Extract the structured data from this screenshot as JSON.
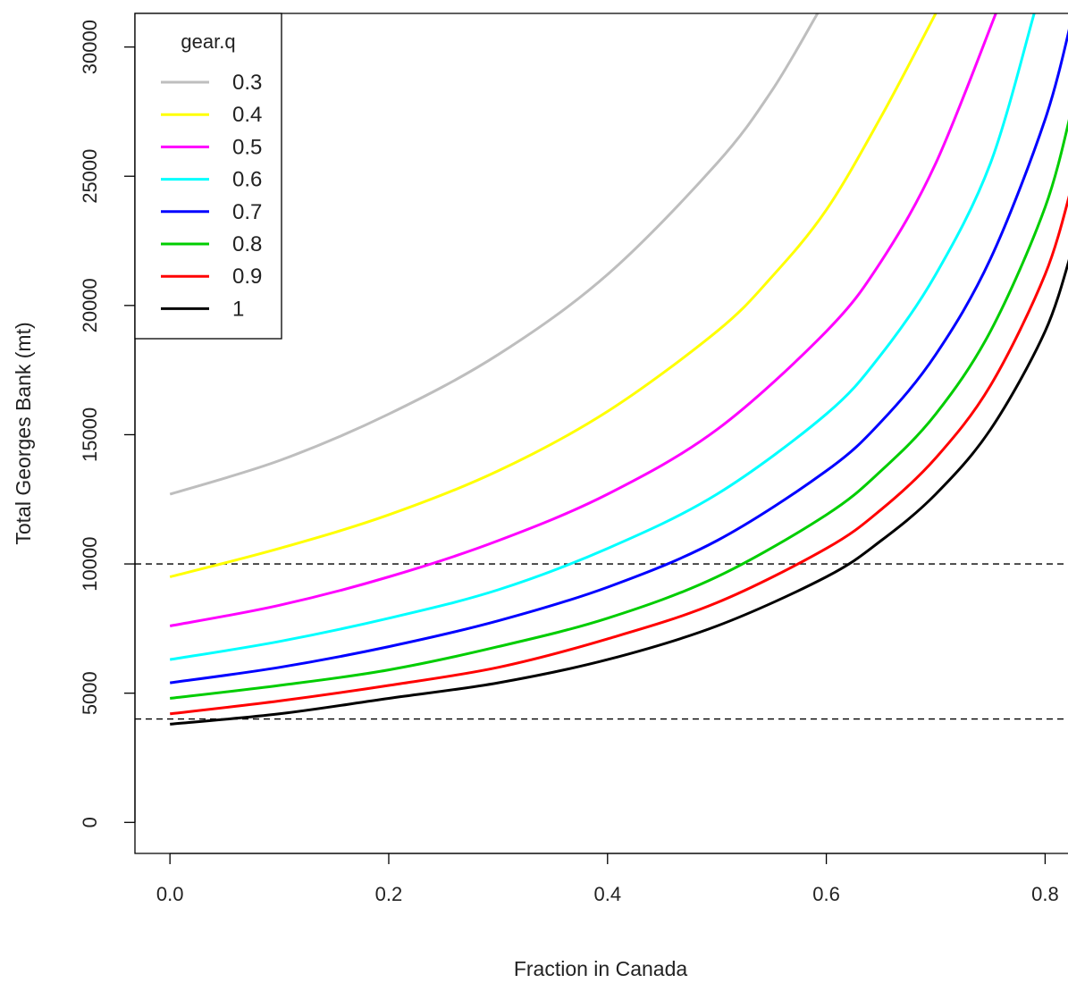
{
  "chart_data": {
    "type": "line",
    "xlabel": "Fraction in Canada",
    "ylabel": "Total Georges Bank (mt)",
    "xlim": [
      -0.032,
      0.825
    ],
    "ylim": [
      -1200,
      31300
    ],
    "x_ticks": [
      {
        "value": 0.0,
        "label": "0.0"
      },
      {
        "value": 0.2,
        "label": "0.2"
      },
      {
        "value": 0.4,
        "label": "0.4"
      },
      {
        "value": 0.6,
        "label": "0.6"
      },
      {
        "value": 0.8,
        "label": "0.8"
      }
    ],
    "y_ticks": [
      {
        "value": 0,
        "label": "0"
      },
      {
        "value": 5000,
        "label": "5000"
      },
      {
        "value": 10000,
        "label": "10000"
      },
      {
        "value": 15000,
        "label": "15000"
      },
      {
        "value": 20000,
        "label": "20000"
      },
      {
        "value": 25000,
        "label": "25000"
      },
      {
        "value": 30000,
        "label": "30000"
      }
    ],
    "reference_lines": [
      {
        "y": 10000,
        "style": "dashed",
        "color": "#000000"
      },
      {
        "y": 4000,
        "style": "dashed",
        "color": "#000000"
      }
    ],
    "legend": {
      "title": "gear.q",
      "position": "top-left"
    },
    "series": [
      {
        "name": "0.3",
        "color": "#bebebe",
        "points": [
          [
            0.0,
            12700
          ],
          [
            0.1,
            14000
          ],
          [
            0.2,
            15800
          ],
          [
            0.3,
            18100
          ],
          [
            0.4,
            21200
          ],
          [
            0.5,
            25500
          ],
          [
            0.55,
            28300
          ],
          [
            0.592,
            31300
          ]
        ]
      },
      {
        "name": "0.4",
        "color": "#ffff00",
        "points": [
          [
            0.0,
            9500
          ],
          [
            0.1,
            10600
          ],
          [
            0.2,
            11900
          ],
          [
            0.3,
            13600
          ],
          [
            0.4,
            15900
          ],
          [
            0.5,
            19000
          ],
          [
            0.55,
            21100
          ],
          [
            0.6,
            23700
          ],
          [
            0.65,
            27300
          ],
          [
            0.7,
            31300
          ]
        ]
      },
      {
        "name": "0.5",
        "color": "#ff00ff",
        "points": [
          [
            0.0,
            7600
          ],
          [
            0.1,
            8400
          ],
          [
            0.2,
            9500
          ],
          [
            0.3,
            10900
          ],
          [
            0.4,
            12700
          ],
          [
            0.5,
            15200
          ],
          [
            0.6,
            19000
          ],
          [
            0.65,
            21700
          ],
          [
            0.7,
            25500
          ],
          [
            0.755,
            31300
          ]
        ]
      },
      {
        "name": "0.6",
        "color": "#00ffff",
        "points": [
          [
            0.0,
            6300
          ],
          [
            0.1,
            7000
          ],
          [
            0.2,
            7900
          ],
          [
            0.3,
            9000
          ],
          [
            0.4,
            10600
          ],
          [
            0.5,
            12700
          ],
          [
            0.6,
            15800
          ],
          [
            0.65,
            18100
          ],
          [
            0.7,
            21200
          ],
          [
            0.75,
            25500
          ],
          [
            0.79,
            31300
          ]
        ]
      },
      {
        "name": "0.7",
        "color": "#0000ff",
        "points": [
          [
            0.0,
            5400
          ],
          [
            0.1,
            6000
          ],
          [
            0.2,
            6800
          ],
          [
            0.3,
            7800
          ],
          [
            0.4,
            9100
          ],
          [
            0.5,
            10900
          ],
          [
            0.6,
            13600
          ],
          [
            0.65,
            15500
          ],
          [
            0.7,
            18100
          ],
          [
            0.75,
            21800
          ],
          [
            0.8,
            27200
          ],
          [
            0.825,
            31200
          ]
        ]
      },
      {
        "name": "0.8",
        "color": "#00cd00",
        "points": [
          [
            0.0,
            4800
          ],
          [
            0.1,
            5300
          ],
          [
            0.2,
            5900
          ],
          [
            0.3,
            6800
          ],
          [
            0.4,
            7900
          ],
          [
            0.5,
            9500
          ],
          [
            0.6,
            11900
          ],
          [
            0.65,
            13600
          ],
          [
            0.7,
            15800
          ],
          [
            0.75,
            19000
          ],
          [
            0.8,
            23800
          ],
          [
            0.825,
            27700
          ]
        ]
      },
      {
        "name": "0.9",
        "color": "#ff0000",
        "points": [
          [
            0.0,
            4200
          ],
          [
            0.1,
            4700
          ],
          [
            0.2,
            5300
          ],
          [
            0.3,
            6000
          ],
          [
            0.4,
            7100
          ],
          [
            0.5,
            8500
          ],
          [
            0.6,
            10600
          ],
          [
            0.65,
            12100
          ],
          [
            0.7,
            14100
          ],
          [
            0.75,
            16900
          ],
          [
            0.8,
            21200
          ],
          [
            0.825,
            24700
          ]
        ]
      },
      {
        "name": "1",
        "color": "#000000",
        "points": [
          [
            0.0,
            3800
          ],
          [
            0.1,
            4200
          ],
          [
            0.2,
            4800
          ],
          [
            0.3,
            5400
          ],
          [
            0.4,
            6300
          ],
          [
            0.5,
            7600
          ],
          [
            0.6,
            9500
          ],
          [
            0.65,
            10900
          ],
          [
            0.7,
            12700
          ],
          [
            0.75,
            15200
          ],
          [
            0.8,
            19000
          ],
          [
            0.825,
            22200
          ]
        ]
      }
    ]
  }
}
